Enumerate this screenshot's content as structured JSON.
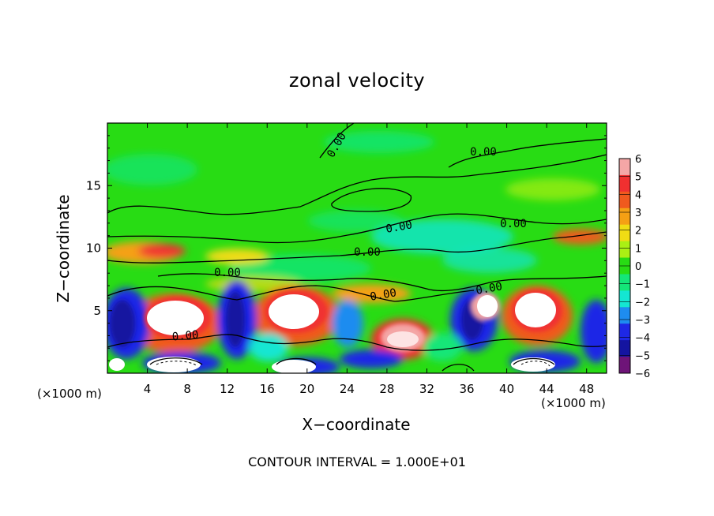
{
  "chart_data": {
    "type": "heatmap",
    "title": "zonal velocity",
    "xlabel": "X−coordinate",
    "ylabel": "Z−coordinate",
    "x_unit_left": "(×1000 m)",
    "x_unit_right": "(×1000 m)",
    "xlim": [
      0,
      50
    ],
    "ylim": [
      0,
      20
    ],
    "xticks": [
      4,
      8,
      12,
      16,
      20,
      24,
      28,
      32,
      36,
      40,
      44,
      48
    ],
    "yticks": [
      5,
      10,
      15
    ],
    "colorbar": {
      "levels": [
        6,
        5,
        4,
        3,
        2,
        1,
        0,
        -1,
        -2,
        -3,
        -4,
        -5,
        -6
      ],
      "level_labels": [
        "6",
        "5",
        "4",
        "3",
        "2",
        "1",
        "0",
        "−1",
        "−2",
        "−3",
        "−4",
        "−5",
        "−6"
      ],
      "colors": [
        "#f4a6a6",
        "#f03030",
        "#f05a1e",
        "#f5a014",
        "#f0dc14",
        "#aaf014",
        "#28dc14",
        "#14e678",
        "#14e6d2",
        "#1e8cf0",
        "#1e28e6",
        "#1414a0",
        "#6e1478"
      ]
    },
    "contour_labels": [
      "0.00",
      "0.00",
      "0.00",
      "0.00",
      "0.00",
      "0.00",
      "0.00",
      "0.00",
      "0.00"
    ],
    "footnote": "CONTOUR INTERVAL = 1.000E+01"
  }
}
